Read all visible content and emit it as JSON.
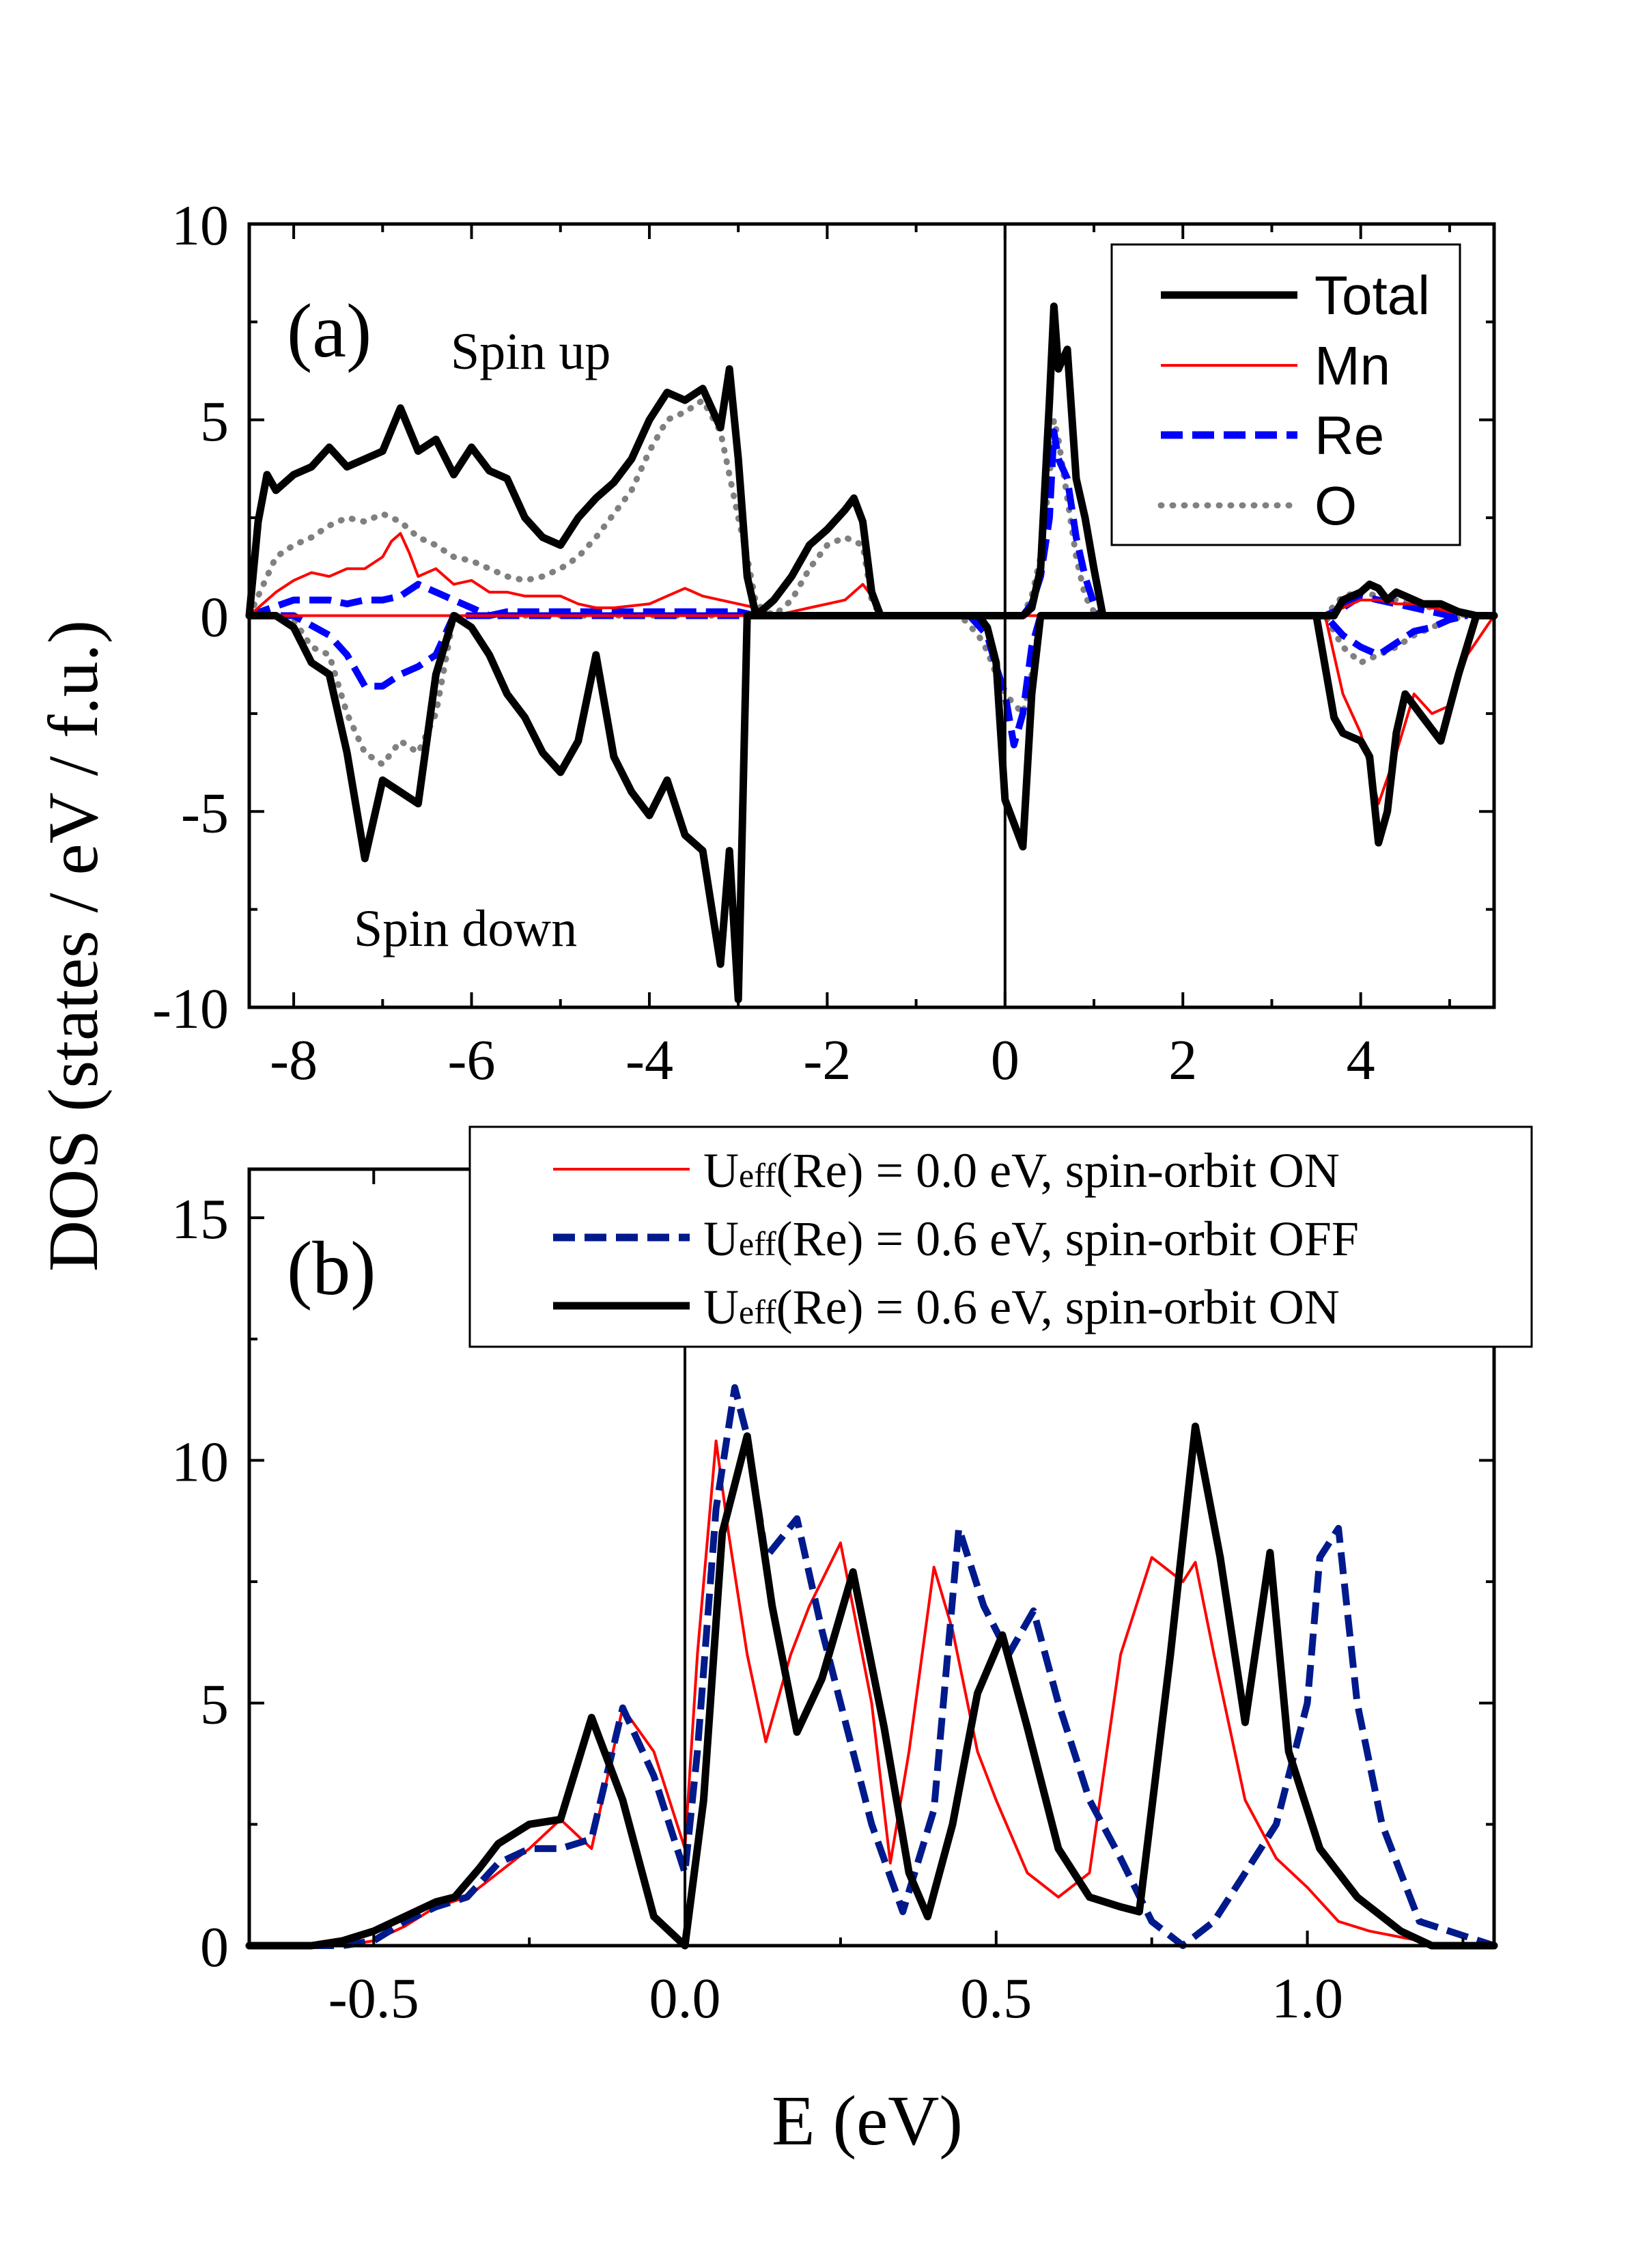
{
  "figure": {
    "ylabel": "DOS (states / eV / f.u.)",
    "xlabel": "E (eV)"
  },
  "chart_data": [
    {
      "type": "line",
      "panel": "(a)",
      "xlim": [
        -8.5,
        5.5
      ],
      "ylim": [
        -10,
        10
      ],
      "xticks": [
        -8,
        -6,
        -4,
        -2,
        0,
        2,
        4
      ],
      "xtick_labels": [
        "-8",
        "-6",
        "-4",
        "-2",
        "0",
        "2",
        "4"
      ],
      "yticks": [
        -10,
        -5,
        0,
        5,
        10
      ],
      "ytick_labels": [
        "-10",
        "-5",
        "0",
        "5",
        "10"
      ],
      "vline_x": 0,
      "annotations": {
        "label": "(a)",
        "spin_up": "Spin up",
        "spin_down": "Spin down"
      },
      "legend_position": "top-right",
      "series": [
        {
          "name": "Total",
          "color": "#000000",
          "style": "solid-thick",
          "x": [
            -8.5,
            -8.4,
            -8.3,
            -8.2,
            -8.0,
            -7.8,
            -7.6,
            -7.4,
            -7.2,
            -7.0,
            -6.8,
            -6.6,
            -6.4,
            -6.2,
            -6.0,
            -5.8,
            -5.6,
            -5.4,
            -5.2,
            -5.0,
            -4.8,
            -4.6,
            -4.4,
            -4.2,
            -4.0,
            -3.8,
            -3.6,
            -3.4,
            -3.2,
            -3.1,
            -3.0,
            -2.9,
            -2.8,
            -2.6,
            -2.4,
            -2.2,
            -2.0,
            -1.8,
            -1.7,
            -1.6,
            -1.5,
            -1.4,
            -1.3,
            -1.2,
            -1.0,
            -0.5,
            -0.3,
            -0.2,
            -0.1,
            0.0,
            0.2,
            0.3,
            0.4,
            0.5,
            0.55,
            0.6,
            0.7,
            0.8,
            0.9,
            1.0,
            1.1,
            1.2,
            2.0,
            3.5,
            3.7,
            3.8,
            4.0,
            4.1,
            4.2,
            4.3,
            4.4,
            4.5,
            4.7,
            4.9,
            5.1,
            5.3,
            5.5
          ],
          "up": [
            0.0,
            2.4,
            3.6,
            3.2,
            3.6,
            3.8,
            4.3,
            3.8,
            4.0,
            4.2,
            5.3,
            4.2,
            4.5,
            3.6,
            4.3,
            3.7,
            3.5,
            2.5,
            2.0,
            1.8,
            2.5,
            3.0,
            3.4,
            4.0,
            5.0,
            5.7,
            5.5,
            5.8,
            4.8,
            6.3,
            4.0,
            1.0,
            0.0,
            0.4,
            1.0,
            1.8,
            2.2,
            2.7,
            3.0,
            2.4,
            0.6,
            0.0,
            0.0,
            0.0,
            0.0,
            0.0,
            0.0,
            0.0,
            0.0,
            0.0,
            0.0,
            0.2,
            1.2,
            5.5,
            7.9,
            6.3,
            6.8,
            3.5,
            2.5,
            1.2,
            0.0,
            0.0,
            0.0,
            0.0,
            0.0,
            0.4,
            0.6,
            0.8,
            0.7,
            0.4,
            0.6,
            0.5,
            0.3,
            0.3,
            0.1,
            0.0,
            0.0
          ],
          "down": [
            0.0,
            0.0,
            0.0,
            0.0,
            -0.3,
            -1.2,
            -1.5,
            -3.5,
            -6.2,
            -4.2,
            -4.5,
            -4.8,
            -1.5,
            0.0,
            -0.3,
            -1.0,
            -2.0,
            -2.6,
            -3.5,
            -4.0,
            -3.2,
            -1.0,
            -3.6,
            -4.5,
            -5.1,
            -4.2,
            -5.6,
            -6.0,
            -8.9,
            -6.0,
            -9.8,
            0.0,
            0.0,
            0.0,
            0.0,
            0.0,
            0.0,
            0.0,
            0.0,
            0.0,
            0.0,
            0.0,
            0.0,
            0.0,
            0.0,
            0.0,
            0.0,
            -0.3,
            -1.2,
            -4.7,
            -5.9,
            -2.0,
            0.0,
            0.0,
            0.0,
            0.0,
            0.0,
            0.0,
            0.0,
            0.0,
            0.0,
            0.0,
            0.0,
            0.0,
            -2.6,
            -3.0,
            -3.2,
            -3.6,
            -5.8,
            -5.0,
            -3.0,
            -2.0,
            -2.6,
            -3.2,
            -1.5,
            0.0,
            0.0
          ]
        },
        {
          "name": "Mn",
          "color": "#ff0000",
          "style": "solid-thin",
          "x": [
            -8.5,
            -8.2,
            -8.0,
            -7.8,
            -7.6,
            -7.4,
            -7.2,
            -7.0,
            -6.9,
            -6.8,
            -6.7,
            -6.6,
            -6.4,
            -6.2,
            -6.0,
            -5.8,
            -5.6,
            -5.4,
            -5.2,
            -5.0,
            -4.8,
            -4.6,
            -4.4,
            -4.0,
            -3.8,
            -3.6,
            -3.4,
            -3.2,
            -3.0,
            -2.8,
            -2.6,
            -2.4,
            -2.2,
            -2.0,
            -1.8,
            -1.6,
            -1.5,
            -1.4,
            -1.2,
            3.6,
            3.8,
            4.0,
            4.2,
            4.4,
            4.6,
            4.8,
            5.0,
            5.2,
            5.5
          ],
          "up": [
            0.0,
            0.6,
            0.9,
            1.1,
            1.0,
            1.2,
            1.2,
            1.5,
            1.9,
            2.1,
            1.6,
            1.0,
            1.2,
            0.8,
            0.9,
            0.6,
            0.6,
            0.5,
            0.5,
            0.5,
            0.3,
            0.2,
            0.2,
            0.3,
            0.5,
            0.7,
            0.5,
            0.4,
            0.3,
            0.2,
            0.0,
            0.1,
            0.2,
            0.3,
            0.4,
            0.8,
            0.5,
            0.0,
            0.0,
            0.0,
            0.2,
            0.4,
            0.4,
            0.3,
            0.3,
            0.2,
            0.1,
            0.0,
            0.0
          ],
          "down": [
            0.0,
            0.0,
            0.0,
            0.0,
            0.0,
            0.0,
            0.0,
            0.0,
            0.0,
            0.0,
            0.0,
            0.0,
            0.0,
            0.0,
            0.0,
            0.0,
            0.0,
            0.0,
            0.0,
            0.0,
            0.0,
            0.0,
            0.0,
            0.0,
            0.0,
            0.0,
            0.0,
            0.0,
            0.0,
            0.0,
            0.0,
            0.0,
            0.0,
            0.0,
            0.0,
            0.0,
            0.0,
            0.0,
            0.0,
            0.0,
            -2.0,
            -3.0,
            -4.8,
            -3.5,
            -2.0,
            -2.5,
            -2.3,
            -1.0,
            0.0
          ]
        },
        {
          "name": "Re",
          "color": "#0000ff",
          "style": "dashed",
          "x": [
            -8.5,
            -8.0,
            -7.6,
            -7.4,
            -7.2,
            -7.0,
            -6.8,
            -6.6,
            -6.4,
            -6.2,
            -6.0,
            -5.8,
            -5.6,
            -5.0,
            -3.0,
            -2.8,
            -0.4,
            -0.2,
            -0.1,
            0.0,
            0.1,
            0.2,
            0.3,
            0.4,
            0.5,
            0.55,
            0.6,
            0.7,
            0.8,
            0.9,
            1.0,
            1.1,
            3.6,
            3.8,
            4.0,
            4.2,
            4.4,
            4.6,
            4.8,
            5.0,
            5.2
          ],
          "up": [
            0.0,
            0.4,
            0.4,
            0.3,
            0.4,
            0.4,
            0.5,
            0.8,
            0.6,
            0.4,
            0.2,
            0.0,
            0.1,
            0.1,
            0.1,
            0.0,
            0.0,
            0.0,
            0.0,
            0.0,
            0.0,
            0.0,
            0.3,
            1.0,
            2.5,
            4.7,
            4.0,
            3.5,
            2.0,
            1.0,
            0.3,
            0.0,
            0.0,
            0.2,
            0.5,
            0.4,
            0.3,
            0.2,
            0.1,
            0.0,
            0.0
          ],
          "down": [
            0.0,
            0.0,
            -0.5,
            -1.0,
            -1.8,
            -1.8,
            -1.5,
            -1.3,
            -1.0,
            0.0,
            0.0,
            0.0,
            0.0,
            0.0,
            0.0,
            0.0,
            0.0,
            -0.5,
            -1.3,
            -2.0,
            -3.3,
            -2.5,
            -0.8,
            0.0,
            0.0,
            0.0,
            0.0,
            0.0,
            0.0,
            0.0,
            0.0,
            0.0,
            0.0,
            -0.5,
            -0.8,
            -1.0,
            -0.7,
            -0.4,
            -0.3,
            -0.1,
            0.0
          ]
        },
        {
          "name": "O",
          "color": "#808080",
          "style": "dotted",
          "x": [
            -8.5,
            -8.2,
            -8.0,
            -7.8,
            -7.6,
            -7.4,
            -7.2,
            -7.0,
            -6.8,
            -6.6,
            -6.4,
            -6.2,
            -6.0,
            -5.8,
            -5.6,
            -5.4,
            -5.2,
            -5.0,
            -4.8,
            -4.6,
            -4.4,
            -4.2,
            -4.0,
            -3.8,
            -3.6,
            -3.4,
            -3.2,
            -3.0,
            -2.9,
            -2.8,
            -2.6,
            -2.4,
            -2.2,
            -2.0,
            -1.8,
            -1.6,
            -1.5,
            -1.4,
            -0.5,
            -0.3,
            -0.2,
            -0.1,
            0.0,
            0.2,
            0.3,
            0.4,
            0.5,
            0.55,
            0.6,
            0.7,
            0.8,
            0.9,
            1.0,
            1.1,
            3.6,
            3.8,
            4.0,
            4.2,
            4.4,
            4.6,
            4.8,
            5.0,
            5.2
          ],
          "up": [
            0.0,
            1.5,
            1.8,
            2.0,
            2.3,
            2.5,
            2.4,
            2.6,
            2.4,
            2.0,
            1.8,
            1.5,
            1.4,
            1.2,
            1.0,
            0.9,
            1.0,
            1.2,
            1.5,
            2.0,
            2.6,
            3.2,
            4.2,
            5.0,
            5.2,
            5.5,
            4.7,
            2.5,
            1.5,
            0.3,
            0.0,
            0.4,
            1.2,
            1.8,
            2.0,
            1.8,
            0.4,
            0.0,
            0.0,
            0.0,
            0.0,
            0.0,
            0.0,
            0.0,
            0.5,
            1.5,
            3.5,
            5.0,
            4.5,
            3.0,
            1.5,
            0.5,
            0.1,
            0.0,
            0.0,
            0.5,
            0.6,
            0.5,
            0.4,
            0.3,
            0.2,
            0.1,
            0.0
          ],
          "down": [
            0.0,
            0.0,
            -0.1,
            -0.8,
            -1.0,
            -2.5,
            -3.5,
            -3.8,
            -3.2,
            -3.5,
            -2.5,
            0.0,
            0.0,
            0.0,
            0.0,
            0.0,
            0.0,
            0.0,
            0.0,
            0.0,
            0.0,
            0.0,
            0.0,
            0.0,
            0.0,
            0.0,
            0.0,
            0.0,
            0.0,
            0.0,
            0.0,
            0.0,
            0.0,
            0.0,
            0.0,
            0.0,
            0.0,
            0.0,
            0.0,
            -0.5,
            -0.9,
            -1.5,
            -2.0,
            -2.5,
            -1.5,
            0.0,
            0.0,
            0.0,
            0.0,
            0.0,
            0.0,
            0.0,
            0.0,
            0.0,
            0.0,
            -0.8,
            -1.2,
            -1.0,
            -0.8,
            -0.5,
            -0.3,
            -0.1,
            0.0
          ]
        }
      ]
    },
    {
      "type": "line",
      "panel": "(b)",
      "xlim": [
        -0.7,
        1.3
      ],
      "ylim": [
        0,
        16
      ],
      "xticks": [
        -0.5,
        0.0,
        0.5,
        1.0
      ],
      "xtick_labels": [
        "-0.5",
        "0.0",
        "0.5",
        "1.0"
      ],
      "yticks": [
        0,
        5,
        10,
        15
      ],
      "ytick_labels": [
        "0",
        "5",
        "10",
        "15"
      ],
      "vline_x": 0,
      "annotations": {
        "label": "(b)"
      },
      "legend_position": "top-right",
      "series": [
        {
          "legend_prefix": "U",
          "legend_subscript": "eff",
          "legend_suffix": "(Re) = 0.0 eV, spin-orbit ON",
          "color": "#ff0000",
          "style": "solid-thin",
          "x": [
            -0.7,
            -0.55,
            -0.5,
            -0.45,
            -0.4,
            -0.35,
            -0.3,
            -0.25,
            -0.2,
            -0.15,
            -0.1,
            -0.05,
            0.0,
            0.02,
            0.05,
            0.07,
            0.1,
            0.13,
            0.17,
            0.2,
            0.25,
            0.3,
            0.33,
            0.36,
            0.4,
            0.43,
            0.47,
            0.5,
            0.55,
            0.6,
            0.65,
            0.7,
            0.75,
            0.8,
            0.82,
            0.85,
            0.9,
            0.95,
            1.0,
            1.05,
            1.1,
            1.2,
            1.3
          ],
          "y": [
            0.0,
            0.0,
            0.1,
            0.4,
            0.8,
            1.0,
            1.5,
            2.0,
            2.6,
            2.0,
            4.9,
            4.0,
            2.0,
            6.0,
            10.4,
            8.5,
            6.0,
            4.2,
            6.0,
            7.0,
            8.3,
            5.0,
            1.7,
            4.0,
            7.8,
            6.5,
            4.0,
            3.0,
            1.5,
            1.0,
            1.5,
            6.0,
            8.0,
            7.5,
            7.9,
            6.0,
            3.0,
            1.8,
            1.2,
            0.5,
            0.3,
            0.05,
            0.0
          ]
        },
        {
          "legend_prefix": "U",
          "legend_subscript": "eff",
          "legend_suffix": "(Re) = 0.6 eV, spin-orbit OFF",
          "color": "#001a8c",
          "style": "dashed",
          "x": [
            -0.7,
            -0.55,
            -0.5,
            -0.45,
            -0.4,
            -0.35,
            -0.3,
            -0.25,
            -0.2,
            -0.15,
            -0.1,
            -0.05,
            0.0,
            0.02,
            0.05,
            0.08,
            0.1,
            0.13,
            0.18,
            0.22,
            0.26,
            0.3,
            0.35,
            0.4,
            0.44,
            0.48,
            0.52,
            0.56,
            0.6,
            0.65,
            0.7,
            0.75,
            0.8,
            0.85,
            0.9,
            0.95,
            1.0,
            1.02,
            1.05,
            1.08,
            1.12,
            1.18,
            1.3
          ],
          "y": [
            0.0,
            0.0,
            0.1,
            0.5,
            0.8,
            1.0,
            1.7,
            2.0,
            2.0,
            2.2,
            4.9,
            3.5,
            1.5,
            4.0,
            9.0,
            11.5,
            10.5,
            8.0,
            8.8,
            6.5,
            4.5,
            2.5,
            0.7,
            2.8,
            8.6,
            7.0,
            6.0,
            6.9,
            5.0,
            3.0,
            1.8,
            0.5,
            0.0,
            0.5,
            1.5,
            2.5,
            5.0,
            8.0,
            8.6,
            5.0,
            2.5,
            0.5,
            0.0
          ]
        },
        {
          "legend_prefix": "U",
          "legend_subscript": "eff",
          "legend_suffix": "(Re) = 0.6 eV, spin-orbit ON",
          "color": "#000000",
          "style": "solid-thick",
          "x": [
            -0.7,
            -0.6,
            -0.55,
            -0.5,
            -0.45,
            -0.4,
            -0.37,
            -0.33,
            -0.3,
            -0.25,
            -0.2,
            -0.15,
            -0.1,
            -0.05,
            0.0,
            0.03,
            0.06,
            0.1,
            0.14,
            0.18,
            0.22,
            0.27,
            0.32,
            0.36,
            0.39,
            0.43,
            0.47,
            0.51,
            0.55,
            0.6,
            0.65,
            0.7,
            0.73,
            0.78,
            0.82,
            0.86,
            0.9,
            0.94,
            0.97,
            1.02,
            1.08,
            1.15,
            1.2,
            1.3
          ],
          "y": [
            0.0,
            0.0,
            0.1,
            0.3,
            0.6,
            0.9,
            1.0,
            1.6,
            2.1,
            2.5,
            2.6,
            4.7,
            3.0,
            0.6,
            0.0,
            3.0,
            8.5,
            10.5,
            7.0,
            4.4,
            5.5,
            7.7,
            4.5,
            1.5,
            0.6,
            2.5,
            5.2,
            6.4,
            4.5,
            2.0,
            1.0,
            0.8,
            0.7,
            6.0,
            10.7,
            8.0,
            4.6,
            8.1,
            4.0,
            2.0,
            1.0,
            0.3,
            0.0,
            0.0
          ]
        }
      ]
    }
  ]
}
